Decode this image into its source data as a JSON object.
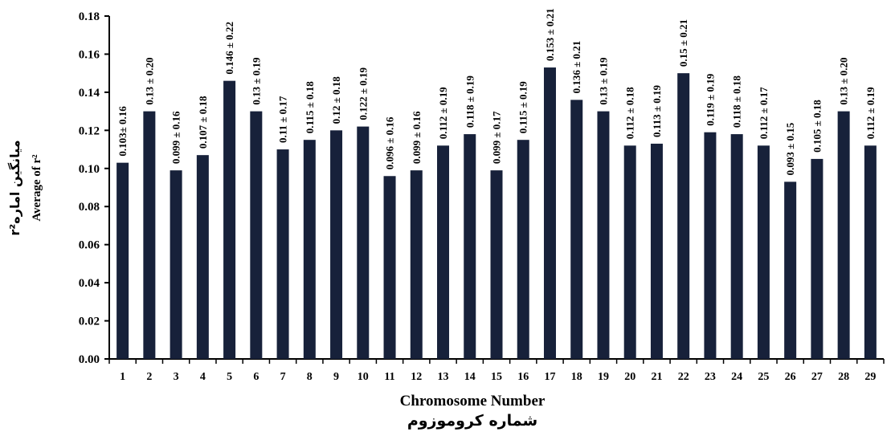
{
  "chart_data": {
    "type": "bar",
    "categories": [
      "1",
      "2",
      "3",
      "4",
      "5",
      "6",
      "7",
      "8",
      "9",
      "10",
      "11",
      "12",
      "13",
      "14",
      "15",
      "16",
      "17",
      "18",
      "19",
      "20",
      "21",
      "22",
      "23",
      "24",
      "25",
      "26",
      "27",
      "28",
      "29"
    ],
    "values": [
      0.103,
      0.13,
      0.099,
      0.107,
      0.146,
      0.13,
      0.11,
      0.115,
      0.12,
      0.122,
      0.096,
      0.099,
      0.112,
      0.118,
      0.099,
      0.115,
      0.153,
      0.136,
      0.13,
      0.112,
      0.113,
      0.15,
      0.119,
      0.118,
      0.112,
      0.093,
      0.105,
      0.13,
      0.112
    ],
    "data_labels": [
      "0.103± 0.16",
      "0.13 ± 0.20",
      "0.099 ± 0.16",
      "0.107 ± 0.18",
      "0.146 ± 0.22",
      "0.13 ± 0.19",
      "0.11 ± 0.17",
      "0.115 ± 0.18",
      "0.12 ± 0.18",
      "0.122 ± 0.19",
      "0.096 ± 0.16",
      "0.099 ± 0.16",
      "0.112 ± 0.19",
      "0.118 ± 0.19",
      "0.099 ± 0.17",
      "0.115 ± 0.19",
      "0.153 ± 0.21",
      "0.136 ± 0.21",
      "0.13 ± 0.19",
      "0.112 ± 0.18",
      "0.113 ± 0.19",
      "0.15 ± 0.21",
      "0.119 ± 0.19",
      "0.118 ± 0.18",
      "0.112 ± 0.17",
      "0.093 ± 0.15",
      "0.105 ± 0.18",
      "0.13 ± 0.20",
      "0.112 ± 0.19"
    ],
    "ylim": [
      0,
      0.18
    ],
    "yticks": [
      "0.00",
      "0.02",
      "0.04",
      "0.06",
      "0.08",
      "0.10",
      "0.12",
      "0.14",
      "0.16",
      "0.18"
    ],
    "xlabel": "Chromosome Number",
    "xlabel_fa": "شماره کروموزوم",
    "ylabel": "Average of r²",
    "ylabel_fa": "میانگین امارهr²",
    "bar_color": "#17213a",
    "grid": false
  }
}
